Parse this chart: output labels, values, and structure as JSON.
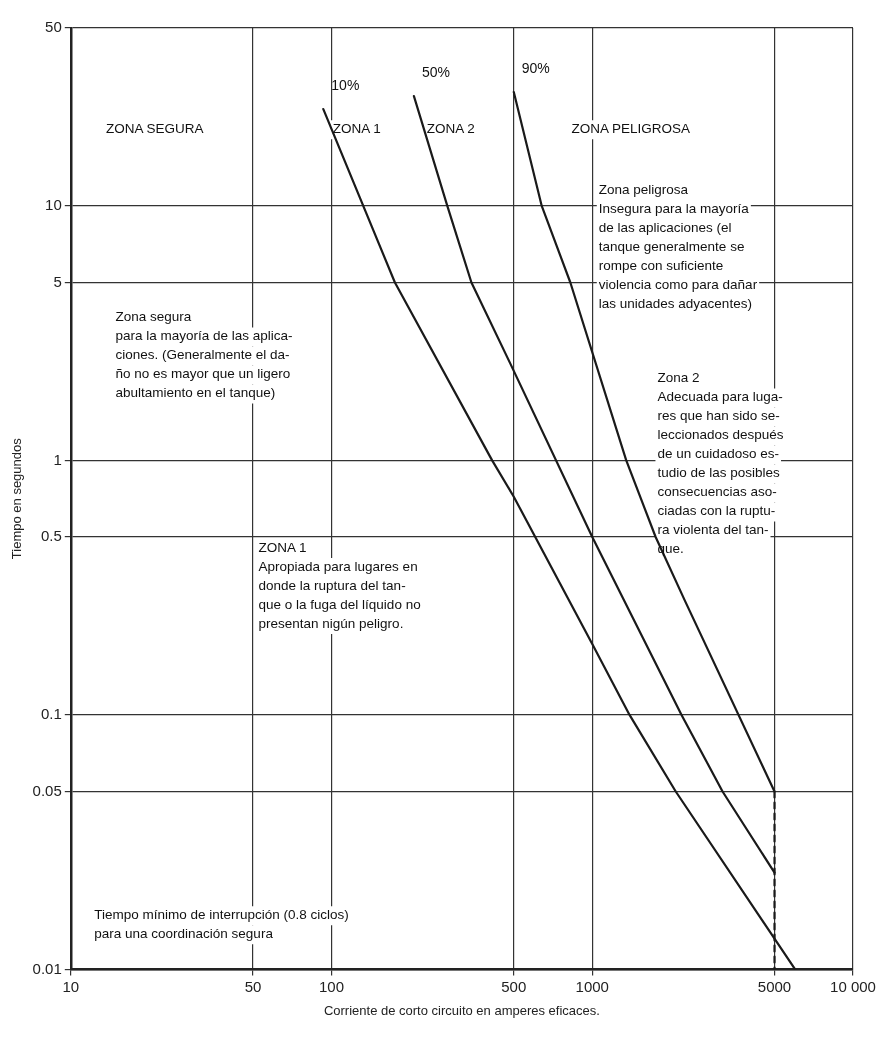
{
  "chart_data": {
    "type": "line",
    "xlabel": "Corriente de corto circuito en amperes eficaces.",
    "ylabel": "Tiempo en segundos",
    "log": "xy",
    "grid": true,
    "legend": false,
    "marker": "none",
    "line_style": "solid",
    "xlim": [
      10,
      10000
    ],
    "xticks": [
      10,
      50,
      100,
      500,
      1000,
      5000,
      {
        "value": 10000,
        "label": "10 000"
      }
    ],
    "ylim": [
      0.01,
      50
    ],
    "yticks": [
      0.01,
      0.05,
      0.1,
      0.5,
      1,
      5,
      10,
      50
    ],
    "series": [
      {
        "name": "10%",
        "color": "#1a1a1a",
        "x": [
          93,
          175,
          413,
          500,
          1000,
          1390,
          2090,
          6000
        ],
        "values": [
          24,
          5,
          1,
          0.72,
          0.19,
          0.1,
          0.05,
          0.01
        ]
      },
      {
        "name": "50%",
        "color": "#1a1a1a",
        "x": [
          207,
          278,
          344,
          485,
          1000,
          2200,
          3160,
          5000
        ],
        "values": [
          27,
          10,
          5,
          2.4,
          0.5,
          0.1,
          0.05,
          0.024
        ]
      },
      {
        "name": "90%",
        "color": "#1a1a1a",
        "x": [
          500,
          640,
          824,
          1350,
          1750,
          2270,
          5000
        ],
        "values": [
          28,
          10,
          5,
          1,
          0.5,
          0.28,
          0.05
        ]
      },
      {
        "type": "line",
        "line_style": "dashed",
        "color": "#1a1a1a",
        "x": [
          5000,
          5000
        ],
        "values": [
          0.05,
          0.01
        ]
      }
    ],
    "annotations": [
      "ZONA SEGURA",
      "ZONA 1",
      "ZONA 2",
      "ZONA PELIGROSA",
      "Zona peligrosa\nInsegura para la mayoría\nde las aplicaciones (el\ntanque generalmente se\nrompe con suficiente\nviolencia como para dañar\nlas unidades adyacentes)",
      "Zona segura\npara la mayoría de las aplica-\nciones. (Generalmente el da-\nño no es mayor que un ligero\nabultamiento en el tanque)",
      "Zona 2\nAdecuada para luga-\nres que han sido se-\nleccionados después\nde un cuidadoso es-\ntudio de las posibles\nconsecuencias aso-\nciadas con la ruptu-\nra violenta del tan-\nque.",
      "ZONA 1\nApropiada para lugares en\ndonde la ruptura del tan-\nque o la fuga del líquido no\npresentan nigún peligro.",
      "Tiempo mínimo de interrupción (0.8 ciclos)\npara una coordinación segura"
    ]
  }
}
